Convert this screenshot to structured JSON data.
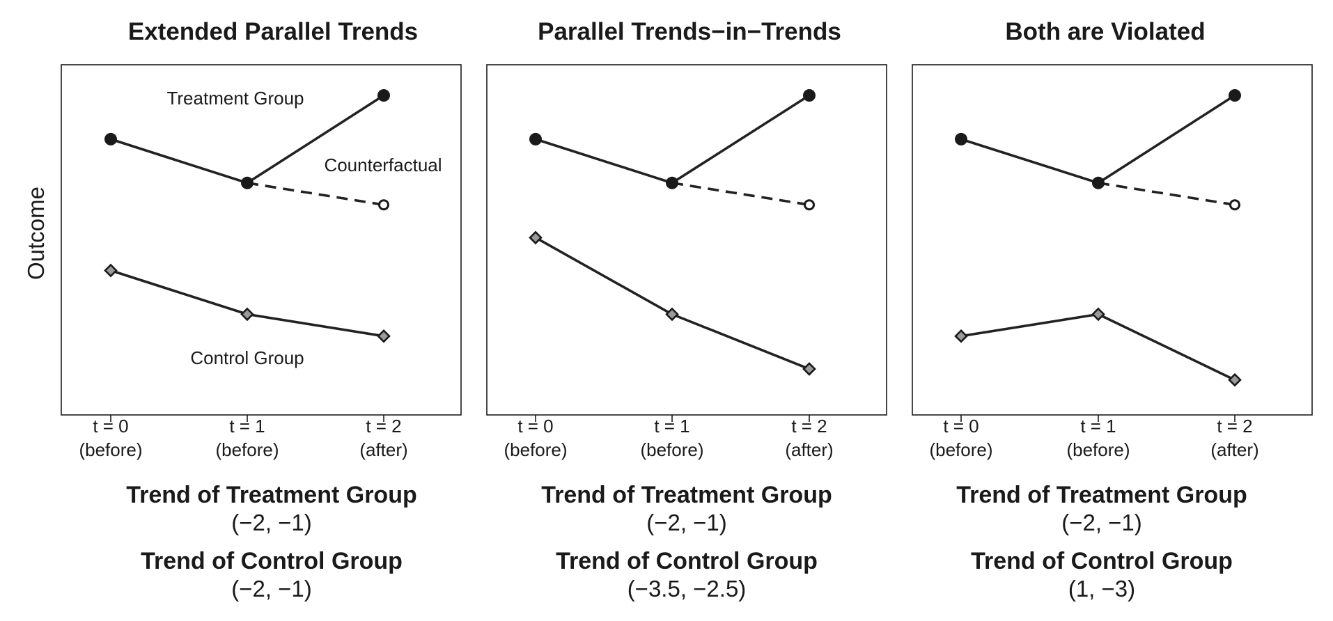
{
  "y_axis_label": "Outcome",
  "chart_data": [
    {
      "type": "line",
      "title": "Extended Parallel Trends",
      "ylabel": "Outcome",
      "x_tick_labels": [
        "t = 0",
        "t = 1",
        "t = 2"
      ],
      "x_tick_sublabels": [
        "(before)",
        "(before)",
        "(after)"
      ],
      "ylim": [
        0,
        16
      ],
      "series": [
        {
          "name": "Treatment Group",
          "values": [
            12.6,
            10.6,
            14.6
          ],
          "marker": "circle-filled",
          "style": "solid"
        },
        {
          "name": "Counterfactual",
          "x": [
            1,
            2
          ],
          "values": [
            10.6,
            9.6
          ],
          "marker": "circle-open",
          "style": "dashed"
        },
        {
          "name": "Control Group",
          "values": [
            6.6,
            4.6,
            3.6
          ],
          "marker": "diamond",
          "style": "solid"
        }
      ],
      "annotations": [
        "Treatment Group",
        "Counterfactual",
        "Control Group"
      ],
      "trend_treatment_label": "Trend of Treatment Group",
      "trend_treatment_value": "(−2, −1)",
      "trend_control_label": "Trend of Control Group",
      "trend_control_value": "(−2, −1)"
    },
    {
      "type": "line",
      "title": "Parallel Trends−in−Trends",
      "x_tick_labels": [
        "t = 0",
        "t = 1",
        "t = 2"
      ],
      "x_tick_sublabels": [
        "(before)",
        "(before)",
        "(after)"
      ],
      "ylim": [
        0,
        16
      ],
      "series": [
        {
          "values": [
            12.6,
            10.6,
            14.6
          ],
          "marker": "circle-filled",
          "style": "solid"
        },
        {
          "x": [
            1,
            2
          ],
          "values": [
            10.6,
            9.6
          ],
          "marker": "circle-open",
          "style": "dashed"
        },
        {
          "values": [
            8.1,
            4.6,
            2.1
          ],
          "marker": "diamond",
          "style": "solid"
        }
      ],
      "annotations": [],
      "trend_treatment_label": "Trend of Treatment Group",
      "trend_treatment_value": "(−2, −1)",
      "trend_control_label": "Trend of Control Group",
      "trend_control_value": "(−3.5, −2.5)"
    },
    {
      "type": "line",
      "title": "Both are Violated",
      "x_tick_labels": [
        "t = 0",
        "t = 1",
        "t = 2"
      ],
      "x_tick_sublabels": [
        "(before)",
        "(before)",
        "(after)"
      ],
      "ylim": [
        0,
        16
      ],
      "series": [
        {
          "values": [
            12.6,
            10.6,
            14.6
          ],
          "marker": "circle-filled",
          "style": "solid"
        },
        {
          "x": [
            1,
            2
          ],
          "values": [
            10.6,
            9.6
          ],
          "marker": "circle-open",
          "style": "dashed"
        },
        {
          "values": [
            3.6,
            4.6,
            1.6
          ],
          "marker": "diamond",
          "style": "solid"
        }
      ],
      "annotations": [],
      "trend_treatment_label": "Trend of Treatment Group",
      "trend_treatment_value": "(−2, −1)",
      "trend_control_label": "Trend of Control Group",
      "trend_control_value": "(1, −3)"
    }
  ]
}
